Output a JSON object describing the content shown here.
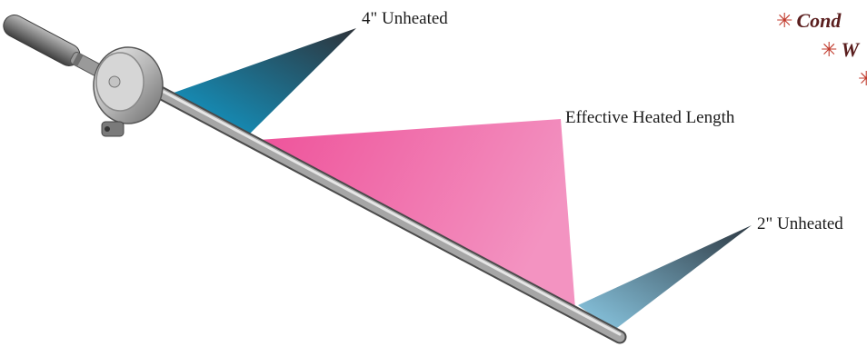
{
  "callouts": {
    "unheated_top": "4\" Unheated",
    "effective_length": "Effective Heated Length",
    "unheated_bottom": "2\" Unheated"
  },
  "bullets": [
    {
      "text": "Cond"
    },
    {
      "text": "W"
    },
    {
      "text": ""
    }
  ],
  "colors": {
    "pink": "#ef5fa0",
    "blue": "#1aa0cf",
    "light_blue": "#7cc0dc",
    "dark_slate": "#2f3a44",
    "bullet_star": "#c0392b",
    "bullet_text": "#5a1e1e"
  }
}
